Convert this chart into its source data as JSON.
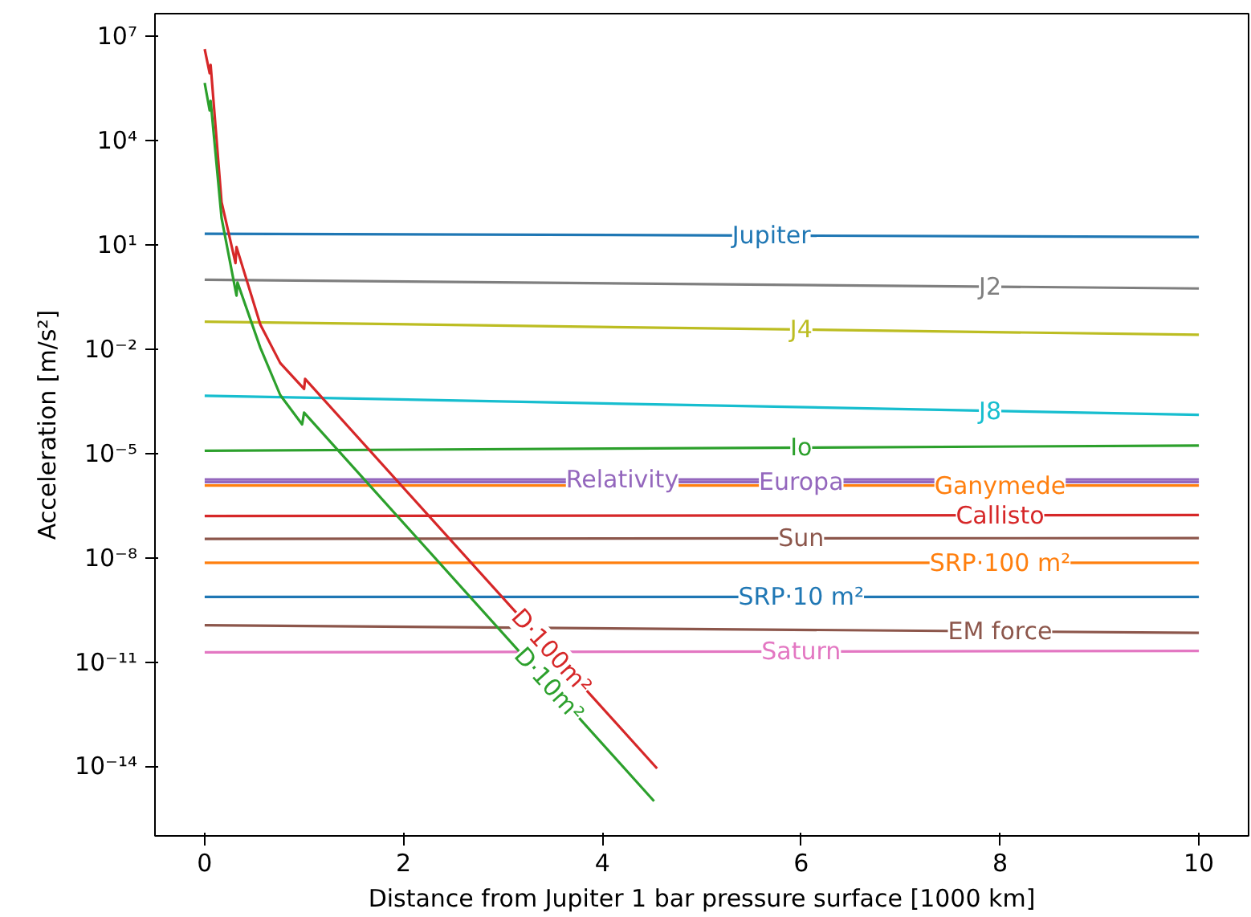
{
  "chart_data": {
    "type": "line",
    "xlabel": "Distance from Jupiter 1 bar pressure surface [1000 km]",
    "ylabel": "Acceleration [m/s²]",
    "log": "y",
    "grid": false,
    "marker": "none",
    "line_style": "solid",
    "xlim": [
      -0.5,
      10.5
    ],
    "xticks": [
      0,
      2,
      4,
      6,
      8,
      10
    ],
    "ylim": [
      1e-16,
      45000000.0
    ],
    "yticks": [
      {
        "value": 10000000.0,
        "label": "10⁷"
      },
      {
        "value": 10000.0,
        "label": "10⁴"
      },
      {
        "value": 10,
        "label": "10¹"
      },
      {
        "value": 0.01,
        "label": "10⁻²"
      },
      {
        "value": 1e-05,
        "label": "10⁻⁵"
      },
      {
        "value": 1e-08,
        "label": "10⁻⁸"
      },
      {
        "value": 1e-11,
        "label": "10⁻¹¹"
      },
      {
        "value": 1e-14,
        "label": "10⁻¹⁴"
      }
    ],
    "series": [
      {
        "name": "Jupiter",
        "color": "#1f77b4",
        "x": [
          0,
          10
        ],
        "values": [
          21,
          17
        ]
      },
      {
        "name": "J2",
        "color": "#7f7f7f",
        "x": [
          0,
          10
        ],
        "values": [
          1.0,
          0.56
        ]
      },
      {
        "name": "J4",
        "color": "#bcbd22",
        "x": [
          0,
          10
        ],
        "values": [
          0.062,
          0.026
        ]
      },
      {
        "name": "J8",
        "color": "#17becf",
        "x": [
          0,
          10
        ],
        "values": [
          0.00046,
          0.00013
        ]
      },
      {
        "name": "Io",
        "color": "#2ca02c",
        "x": [
          0,
          10
        ],
        "values": [
          1.2e-05,
          1.7e-05
        ]
      },
      {
        "name": "Relativity",
        "color": "#9467bd",
        "x": [
          0,
          10
        ],
        "values": [
          1.8e-06,
          1.8e-06
        ]
      },
      {
        "name": "Europa",
        "color": "#9467bd",
        "x": [
          0,
          10
        ],
        "values": [
          1.5e-06,
          1.5e-06
        ]
      },
      {
        "name": "Ganymede",
        "color": "#ff7f0e",
        "x": [
          0,
          10
        ],
        "values": [
          1.2e-06,
          1.2e-06
        ]
      },
      {
        "name": "Callisto",
        "color": "#d62728",
        "x": [
          0,
          10
        ],
        "values": [
          1.6e-07,
          1.7e-07
        ]
      },
      {
        "name": "Sun",
        "color": "#8c564b",
        "x": [
          0,
          10
        ],
        "values": [
          3.5e-08,
          3.7e-08
        ]
      },
      {
        "name": "SRP·100 m²",
        "color": "#ff7f0e",
        "x": [
          0,
          10
        ],
        "values": [
          7.2e-09,
          7.2e-09
        ]
      },
      {
        "name": "SRP·10 m²",
        "color": "#1f77b4",
        "x": [
          0,
          10
        ],
        "values": [
          7.5e-10,
          7.5e-10
        ]
      },
      {
        "name": "EM force",
        "color": "#8c564b",
        "x": [
          0,
          10
        ],
        "values": [
          1.15e-10,
          6.9e-11
        ]
      },
      {
        "name": "Saturn",
        "color": "#e377c2",
        "x": [
          0,
          10
        ],
        "values": [
          1.9e-11,
          2.1e-11
        ]
      },
      {
        "name": "D·100m²",
        "color": "#d62728",
        "x": [
          0,
          0.05,
          0.06,
          0.17,
          0.31,
          0.32,
          0.56,
          0.76,
          1.0,
          1.01,
          4.55
        ],
        "values": [
          4300000.0,
          870000.0,
          1500000.0,
          170,
          3.0,
          8.7,
          0.051,
          0.004,
          0.00072,
          0.0014,
          8.7e-15
        ]
      },
      {
        "name": "D·10m²",
        "color": "#2ca02c",
        "x": [
          0,
          0.05,
          0.06,
          0.17,
          0.32,
          0.33,
          0.56,
          0.76,
          0.98,
          1.0,
          4.52
        ],
        "values": [
          460000.0,
          74000.0,
          140000.0,
          59,
          0.35,
          0.83,
          0.011,
          0.00048,
          6.9e-05,
          0.00015,
          1e-15
        ]
      }
    ]
  }
}
